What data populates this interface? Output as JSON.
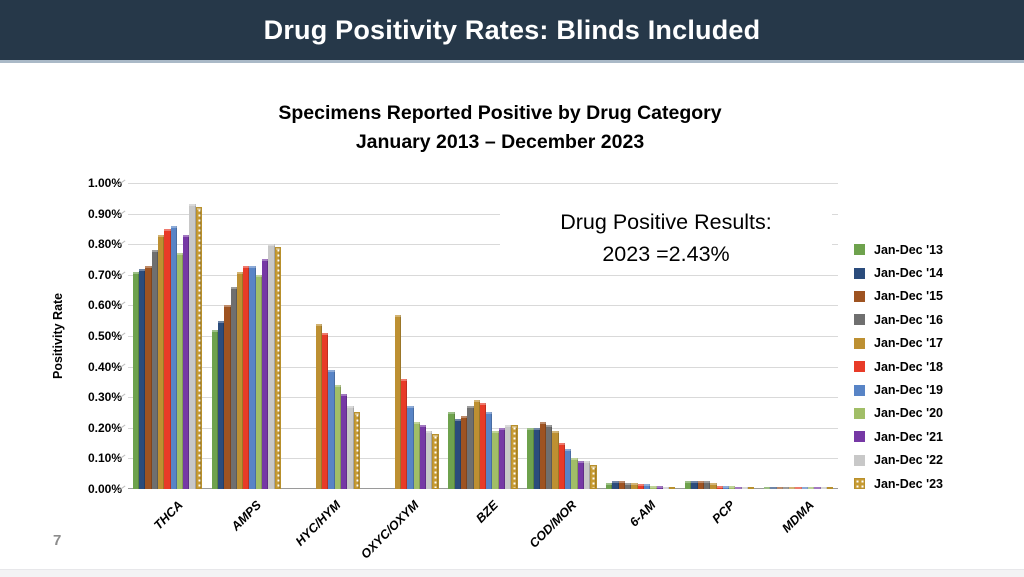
{
  "header": {
    "title": "Drug Positivity Rates: Blinds Included"
  },
  "colors": {
    "header_bg": "#263849",
    "header_border": "#AAB9C7",
    "gridline": "#D9D9D9"
  },
  "chart_data": {
    "type": "bar",
    "title_line1": "Specimens Reported Positive by Drug Category",
    "title_line2": "January 2013 – December 2023",
    "ylabel": "Positivity Rate",
    "ylim": [
      0,
      1.0
    ],
    "ytick_step": 0.1,
    "ytick_labels": [
      "0.00%",
      "0.10%",
      "0.20%",
      "0.30%",
      "0.40%",
      "0.50%",
      "0.60%",
      "0.70%",
      "0.80%",
      "0.90%",
      "1.00%"
    ],
    "grid": true,
    "legend_position": "right",
    "categories": [
      "THCA",
      "AMPS",
      "HYC/HYM",
      "OXYC/OXYM",
      "BZE",
      "COD/MOR",
      "6-AM",
      "PCP",
      "MDMA"
    ],
    "series": [
      {
        "name": "Jan-Dec '13",
        "color": "#6EA24D",
        "values": [
          0.71,
          0.52,
          0,
          0,
          0.25,
          0.2,
          0.02,
          0.025,
          0.005
        ]
      },
      {
        "name": "Jan-Dec '14",
        "color": "#2B4C7C",
        "values": [
          0.72,
          0.55,
          0,
          0,
          0.23,
          0.2,
          0.025,
          0.025,
          0.005
        ]
      },
      {
        "name": "Jan-Dec '15",
        "color": "#9E5321",
        "values": [
          0.73,
          0.6,
          0,
          0,
          0.24,
          0.22,
          0.025,
          0.025,
          0.005
        ]
      },
      {
        "name": "Jan-Dec '16",
        "color": "#6F6F6F",
        "values": [
          0.78,
          0.66,
          0,
          0,
          0.27,
          0.21,
          0.02,
          0.025,
          0.005
        ]
      },
      {
        "name": "Jan-Dec '17",
        "color": "#BD9032",
        "values": [
          0.83,
          0.71,
          0.54,
          0.57,
          0.29,
          0.19,
          0.02,
          0.02,
          0.005
        ]
      },
      {
        "name": "Jan-Dec '18",
        "color": "#E83B28",
        "values": [
          0.85,
          0.73,
          0.51,
          0.36,
          0.28,
          0.15,
          0.015,
          0.01,
          0.005
        ]
      },
      {
        "name": "Jan-Dec '19",
        "color": "#5884C6",
        "values": [
          0.86,
          0.73,
          0.39,
          0.27,
          0.25,
          0.13,
          0.015,
          0.01,
          0.005
        ]
      },
      {
        "name": "Jan-Dec '20",
        "color": "#A1BE67",
        "values": [
          0.77,
          0.7,
          0.34,
          0.22,
          0.19,
          0.1,
          0.01,
          0.01,
          0.005
        ]
      },
      {
        "name": "Jan-Dec '21",
        "color": "#7638A5",
        "values": [
          0.83,
          0.75,
          0.31,
          0.21,
          0.2,
          0.09,
          0.01,
          0.005,
          0.005
        ]
      },
      {
        "name": "Jan-Dec '22",
        "color": "#C8C8C8",
        "values": [
          0.93,
          0.8,
          0.27,
          0.19,
          0.21,
          0.09,
          0.005,
          0.005,
          0.005
        ]
      },
      {
        "name": "Jan-Dec '23",
        "color": "#C79B33",
        "pattern": "checker",
        "values": [
          0.92,
          0.79,
          0.25,
          0.18,
          0.21,
          0.08,
          0.005,
          0.005,
          0.005
        ]
      }
    ],
    "annotation": {
      "line1": "Drug Positive Results:",
      "line2": "2023 =2.43%"
    }
  },
  "footer": {
    "page_number": "7"
  }
}
